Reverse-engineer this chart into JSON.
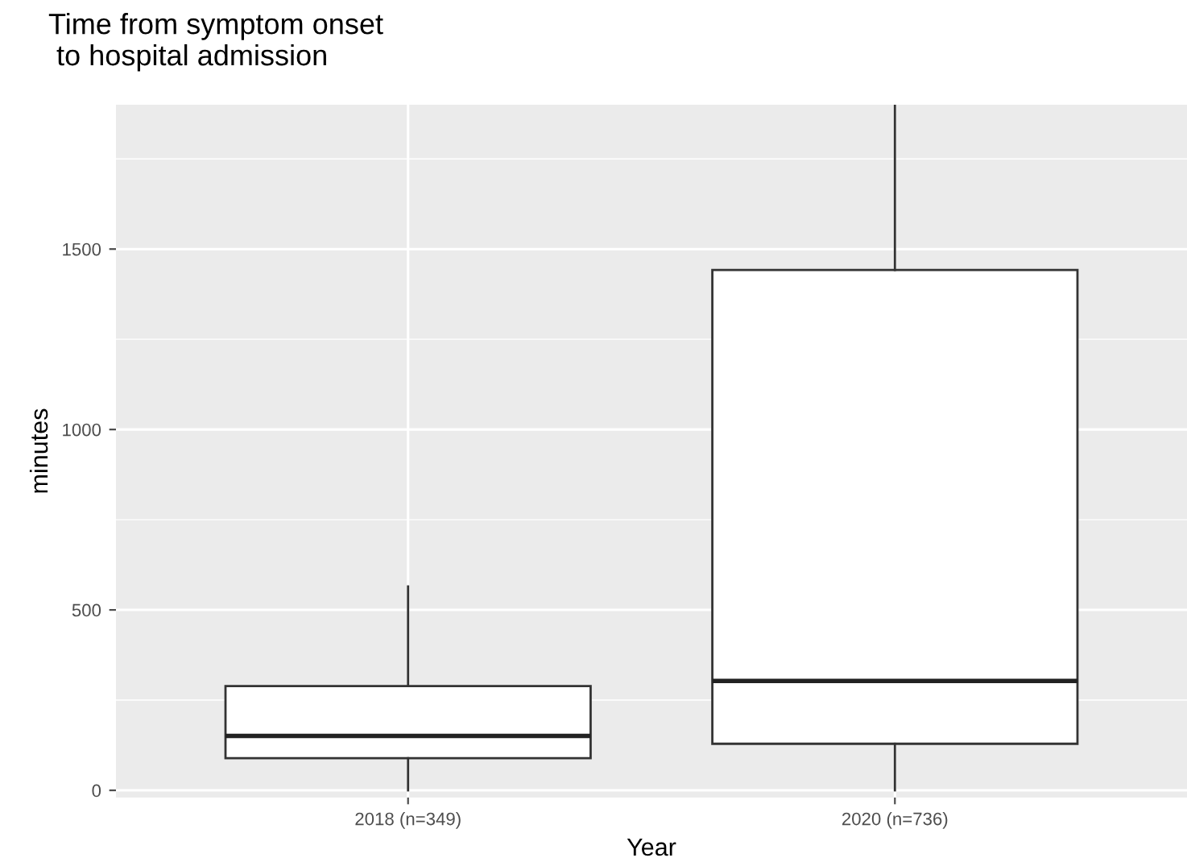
{
  "chart_data": {
    "type": "box",
    "title": "Time from symptom onset\n to hospital admission",
    "xlabel": "Year",
    "ylabel": "minutes",
    "categories": [
      "2018 (n=349)",
      "2020 (n=736)"
    ],
    "boxes": [
      {
        "low": 0,
        "q1": 89,
        "median": 151,
        "q3": 289,
        "high": 565
      },
      {
        "low": 0,
        "q1": 129,
        "median": 303,
        "q3": 1442,
        "high": 1900
      }
    ],
    "ylim": [
      -20,
      1900
    ],
    "yticks": [
      0,
      500,
      1000,
      1500
    ],
    "grid": true
  }
}
